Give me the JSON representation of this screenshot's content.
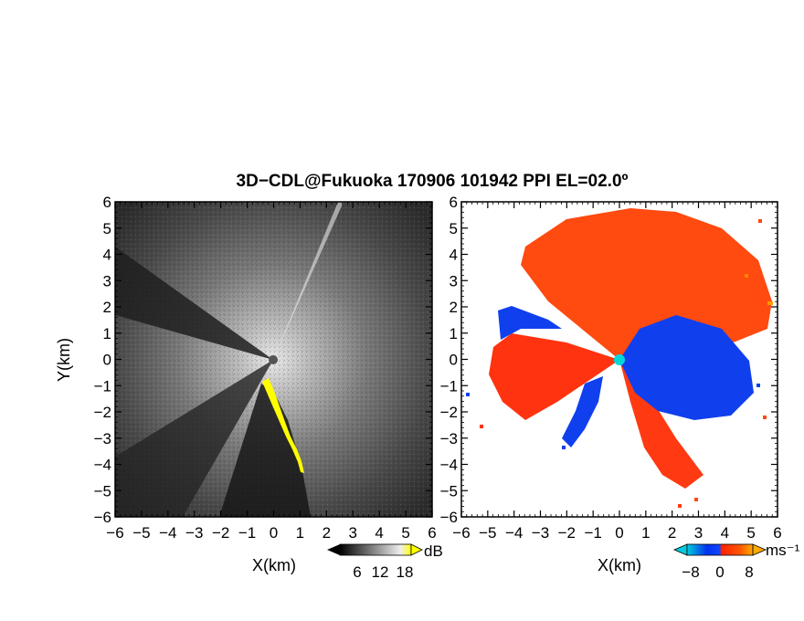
{
  "title": "3D−CDL@Fukuoka 170906 101942 PPI EL=02.0º",
  "chart_data": [
    {
      "type": "heatmap",
      "panel": "left",
      "xlabel": "X(km)",
      "ylabel": "Y(km)",
      "xlim": [
        -6,
        6
      ],
      "ylim": [
        -6,
        6
      ],
      "x_ticks": [
        "−6",
        "−5",
        "−4",
        "−3",
        "−2",
        "−1",
        "0",
        "1",
        "2",
        "3",
        "4",
        "5",
        "6"
      ],
      "y_ticks": [
        "−6",
        "−5",
        "−4",
        "−3",
        "−2",
        "−1",
        "0",
        "1",
        "2",
        "3",
        "4",
        "5",
        "6"
      ],
      "colorbar": {
        "unit": "dB",
        "tick_labels": [
          "6",
          "12",
          "18"
        ],
        "colors": [
          "#000000",
          "#ffffff",
          "#ffff00"
        ]
      },
      "grid": false
    },
    {
      "type": "heatmap",
      "panel": "right",
      "xlabel": "X(km)",
      "xlim": [
        -6,
        6
      ],
      "ylim": [
        -6,
        6
      ],
      "x_ticks": [
        "−6",
        "−5",
        "−4",
        "−3",
        "−2",
        "−1",
        "0",
        "1",
        "2",
        "3",
        "4",
        "5",
        "6"
      ],
      "y_ticks": [
        "−6",
        "−5",
        "−4",
        "−3",
        "−2",
        "−1",
        "0",
        "1",
        "2",
        "3",
        "4",
        "5",
        "6"
      ],
      "colorbar": {
        "unit": "ms⁻¹",
        "tick_labels": [
          "−8",
          "0",
          "8"
        ],
        "colors": [
          "#00ccdd",
          "#0033ee",
          "#ff2200",
          "#ff8800"
        ]
      },
      "grid": false
    }
  ]
}
